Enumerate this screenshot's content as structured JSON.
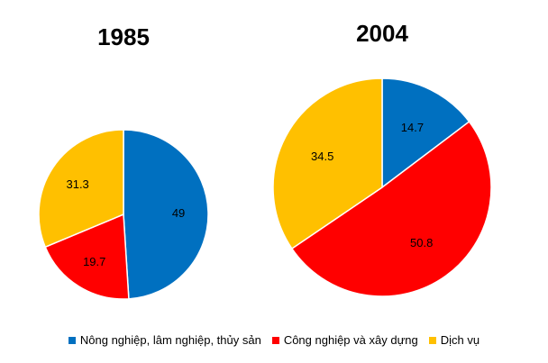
{
  "colors": {
    "agri": "#0070C0",
    "industry": "#FF0000",
    "services": "#FFC000"
  },
  "chart_data": {
    "type": "pie",
    "categories": [
      "Nông nghiệp, lâm nghiệp, thủy sản",
      "Công nghiệp và xây dựng",
      "Dịch vụ"
    ],
    "charts": [
      {
        "title": "1985",
        "values": [
          49,
          19.7,
          31.3
        ],
        "labels": [
          "49",
          "19.7",
          "31.3"
        ]
      },
      {
        "title": "2004",
        "values": [
          14.7,
          50.8,
          34.5
        ],
        "labels": [
          "14.7",
          "50.8",
          "34.5"
        ]
      }
    ],
    "legend": {
      "placement": "bottom",
      "items": [
        "Nông nghiệp, lâm nghiệp, thủy sản",
        "Công nghiệp và xây dựng",
        "Dịch vụ"
      ]
    }
  }
}
